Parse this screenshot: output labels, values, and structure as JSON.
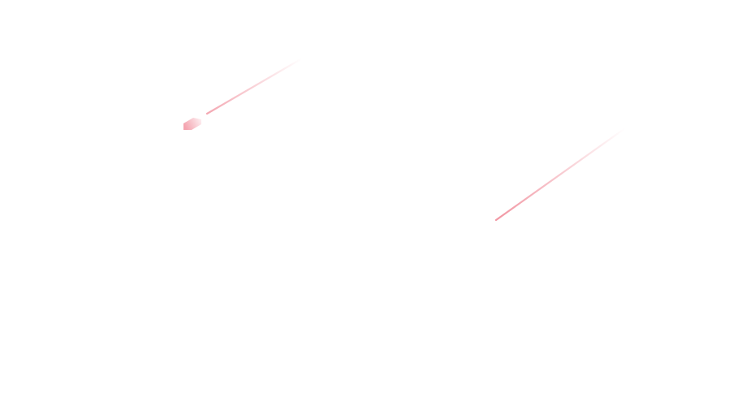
{
  "background": "#ffffff",
  "streak_color": "#f08a98",
  "icons": [
    "shooting-star-icon"
  ]
}
